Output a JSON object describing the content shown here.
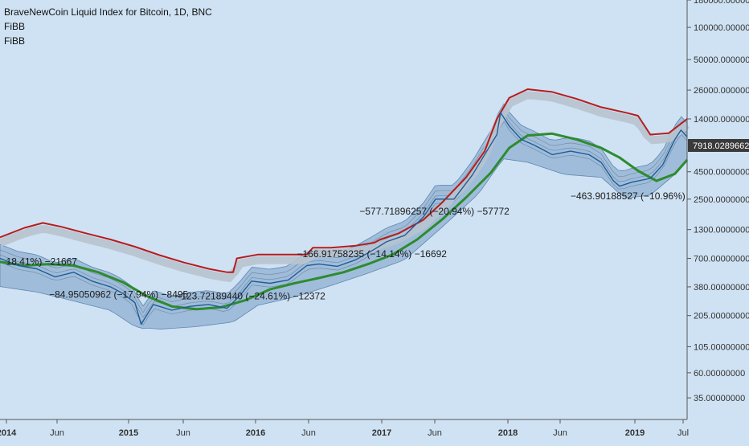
{
  "chart_data": {
    "type": "line",
    "title": "BraveNewCoin Liquid Index for Bitcoin, 1D, BNC",
    "indicators": [
      "FiBB",
      "FiBB"
    ],
    "y_scale": "log",
    "ylim": [
      22,
      180000
    ],
    "x_ticks": [
      "2014",
      "Jun",
      "2015",
      "Jun",
      "2016",
      "Jun",
      "2017",
      "Jun",
      "2018",
      "Jun",
      "2019",
      "Jul"
    ],
    "y_ticks": [
      {
        "value": 180000,
        "label": "180000.00000000"
      },
      {
        "value": 100000,
        "label": "100000.00000000"
      },
      {
        "value": 50000,
        "label": "50000.00000000"
      },
      {
        "value": 26000,
        "label": "26000.00000000"
      },
      {
        "value": 14000,
        "label": "14000.00000000"
      },
      {
        "value": 4500,
        "label": "4500.00000000"
      },
      {
        "value": 2500,
        "label": "2500.00000000"
      },
      {
        "value": 1300,
        "label": "1300.00000000"
      },
      {
        "value": 700,
        "label": "700.00000000"
      },
      {
        "value": 380,
        "label": "380.00000000"
      },
      {
        "value": 205,
        "label": "205.00000000"
      },
      {
        "value": 105,
        "label": "105.00000000"
      },
      {
        "value": 60,
        "label": "60.00000000"
      },
      {
        "value": 35,
        "label": "35.00000000"
      }
    ],
    "last_price": {
      "value": 7918.02896625,
      "label": "7918.02896625"
    },
    "series": [
      {
        "name": "upper-band",
        "color": "#b71c1c",
        "x": [
          2013.9,
          2014.1,
          2014.25,
          2014.4,
          2014.6,
          2014.8,
          2015.0,
          2015.2,
          2015.4,
          2015.6,
          2015.75,
          2015.8,
          2015.83,
          2016.0,
          2016.2,
          2016.4,
          2016.45,
          2016.6,
          2016.8,
          2016.95,
          2017.0,
          2017.15,
          2017.35,
          2017.5,
          2017.7,
          2017.85,
          2017.95,
          2018.05,
          2018.2,
          2018.4,
          2018.6,
          2018.8,
          2019.0,
          2019.1,
          2019.2,
          2019.35,
          2019.5
        ],
        "values": [
          1100,
          1350,
          1500,
          1380,
          1200,
          1050,
          900,
          750,
          640,
          560,
          520,
          520,
          700,
          760,
          760,
          760,
          880,
          880,
          920,
          980,
          1050,
          1200,
          1600,
          2300,
          4000,
          7000,
          14000,
          22000,
          26500,
          25000,
          21500,
          18000,
          16000,
          15000,
          10000,
          10300,
          14000
        ]
      },
      {
        "name": "moving-average",
        "color": "#2e8b2e",
        "x": [
          2013.9,
          2014.1,
          2014.3,
          2014.5,
          2014.7,
          2014.9,
          2015.1,
          2015.3,
          2015.5,
          2015.7,
          2015.9,
          2016.1,
          2016.3,
          2016.5,
          2016.7,
          2016.9,
          2017.1,
          2017.3,
          2017.5,
          2017.7,
          2017.9,
          2018.05,
          2018.2,
          2018.4,
          2018.6,
          2018.8,
          2018.95,
          2019.1,
          2019.25,
          2019.4,
          2019.5
        ],
        "values": [
          650,
          600,
          620,
          600,
          520,
          420,
          310,
          250,
          235,
          245,
          285,
          360,
          410,
          460,
          520,
          620,
          760,
          1050,
          1600,
          2600,
          4400,
          7500,
          9800,
          10200,
          9000,
          7500,
          6100,
          4600,
          3700,
          4300,
          5800
        ]
      },
      {
        "name": "price",
        "color": "#1f5d99",
        "x": [
          2013.9,
          2014.05,
          2014.2,
          2014.35,
          2014.5,
          2014.65,
          2014.8,
          2014.9,
          2015.0,
          2015.05,
          2015.15,
          2015.3,
          2015.45,
          2015.6,
          2015.75,
          2015.85,
          2015.95,
          2016.1,
          2016.25,
          2016.4,
          2016.5,
          2016.65,
          2016.8,
          2016.95,
          2017.05,
          2017.2,
          2017.35,
          2017.45,
          2017.6,
          2017.75,
          2017.85,
          2017.95,
          2017.98,
          2018.05,
          2018.15,
          2018.25,
          2018.4,
          2018.55,
          2018.7,
          2018.8,
          2018.9,
          2018.95,
          2019.05,
          2019.2,
          2019.3,
          2019.4,
          2019.45,
          2019.5
        ],
        "values": [
          700,
          600,
          560,
          470,
          520,
          430,
          380,
          330,
          270,
          170,
          260,
          230,
          250,
          260,
          240,
          310,
          430,
          410,
          440,
          600,
          620,
          590,
          680,
          850,
          1000,
          1150,
          1700,
          2500,
          2500,
          4200,
          6500,
          10000,
          16000,
          12000,
          9000,
          8000,
          6500,
          7000,
          6500,
          5500,
          3700,
          3300,
          3600,
          3900,
          5200,
          9000,
          11000,
          9500
        ]
      },
      {
        "name": "lower-band",
        "color": "#7fa7cc",
        "x": [
          2013.9,
          2014.2,
          2014.5,
          2014.8,
          2015.0,
          2015.2,
          2015.5,
          2015.8,
          2016.0,
          2016.3,
          2016.6,
          2016.9,
          2017.2,
          2017.5,
          2017.8,
          2018.0,
          2018.2,
          2018.5,
          2018.8,
          2019.0,
          2019.2,
          2019.4,
          2019.5
        ],
        "values": [
          450,
          400,
          330,
          270,
          190,
          180,
          190,
          210,
          300,
          360,
          460,
          600,
          800,
          1600,
          3300,
          7000,
          6500,
          5000,
          4700,
          3000,
          3200,
          5000,
          7000
        ]
      }
    ],
    "annotations": [
      {
        "text": "18.41%) −21667",
        "x": 2013.95,
        "y": 610
      },
      {
        "text": "−84.95050962 (−17.94%) −8495",
        "x": 2014.3,
        "y": 300
      },
      {
        "text": "−123.72189440 (−24.61%) −12372",
        "x": 2015.33,
        "y": 290
      },
      {
        "text": "−166.91758235 (−14.14%) −16692",
        "x": 2016.32,
        "y": 720
      },
      {
        "text": "−577.71896257 (−20.94%) −57772",
        "x": 2016.83,
        "y": 1800
      },
      {
        "text": "−463.90188527 (−10.96%)",
        "x": 2018.55,
        "y": 2500
      }
    ]
  }
}
